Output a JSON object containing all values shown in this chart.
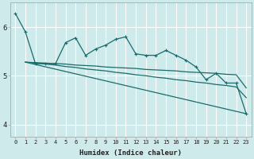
{
  "background_color": "#ceeaea",
  "grid_color": "#ffffff",
  "line_color": "#1a6b6b",
  "xlabel": "Humidex (Indice chaleur)",
  "xlim": [
    -0.5,
    23.5
  ],
  "ylim": [
    3.75,
    6.5
  ],
  "yticks": [
    4,
    5,
    6
  ],
  "xticks": [
    0,
    1,
    2,
    3,
    4,
    5,
    6,
    7,
    8,
    9,
    10,
    11,
    12,
    13,
    14,
    15,
    16,
    17,
    18,
    19,
    20,
    21,
    22,
    23
  ],
  "series": [
    {
      "x": [
        0,
        1,
        2,
        3,
        4,
        5,
        6,
        7,
        8,
        9,
        10,
        11,
        12,
        13,
        14,
        15,
        16,
        17,
        18,
        19,
        20,
        21,
        22,
        23
      ],
      "y": [
        6.28,
        5.9,
        5.25,
        5.25,
        5.25,
        5.68,
        5.78,
        5.42,
        5.55,
        5.63,
        5.75,
        5.8,
        5.45,
        5.42,
        5.42,
        5.52,
        5.42,
        5.32,
        5.18,
        4.92,
        5.05,
        4.85,
        4.85,
        4.22
      ],
      "marker": "+",
      "markersize": 3,
      "linewidth": 0.9
    },
    {
      "x": [
        1,
        2,
        3,
        4,
        5,
        6,
        7,
        8,
        9,
        10,
        11,
        12,
        13,
        14,
        15,
        16,
        17,
        18,
        19,
        20,
        21,
        22,
        23
      ],
      "y": [
        5.28,
        5.27,
        5.26,
        5.25,
        5.24,
        5.22,
        5.21,
        5.2,
        5.18,
        5.17,
        5.16,
        5.15,
        5.13,
        5.12,
        5.11,
        5.1,
        5.08,
        5.07,
        5.06,
        5.05,
        5.03,
        5.02,
        4.75
      ],
      "marker": null,
      "linewidth": 0.9
    },
    {
      "x": [
        1,
        2,
        3,
        4,
        5,
        6,
        7,
        8,
        9,
        10,
        11,
        12,
        13,
        14,
        15,
        16,
        17,
        18,
        19,
        20,
        21,
        22,
        23
      ],
      "y": [
        5.28,
        5.26,
        5.24,
        5.22,
        5.19,
        5.17,
        5.14,
        5.12,
        5.1,
        5.07,
        5.05,
        5.02,
        5.0,
        4.97,
        4.95,
        4.92,
        4.9,
        4.87,
        4.85,
        4.82,
        4.8,
        4.77,
        4.55
      ],
      "marker": null,
      "linewidth": 0.9
    },
    {
      "x": [
        1,
        23
      ],
      "y": [
        5.28,
        4.22
      ],
      "marker": null,
      "linewidth": 0.9
    }
  ]
}
